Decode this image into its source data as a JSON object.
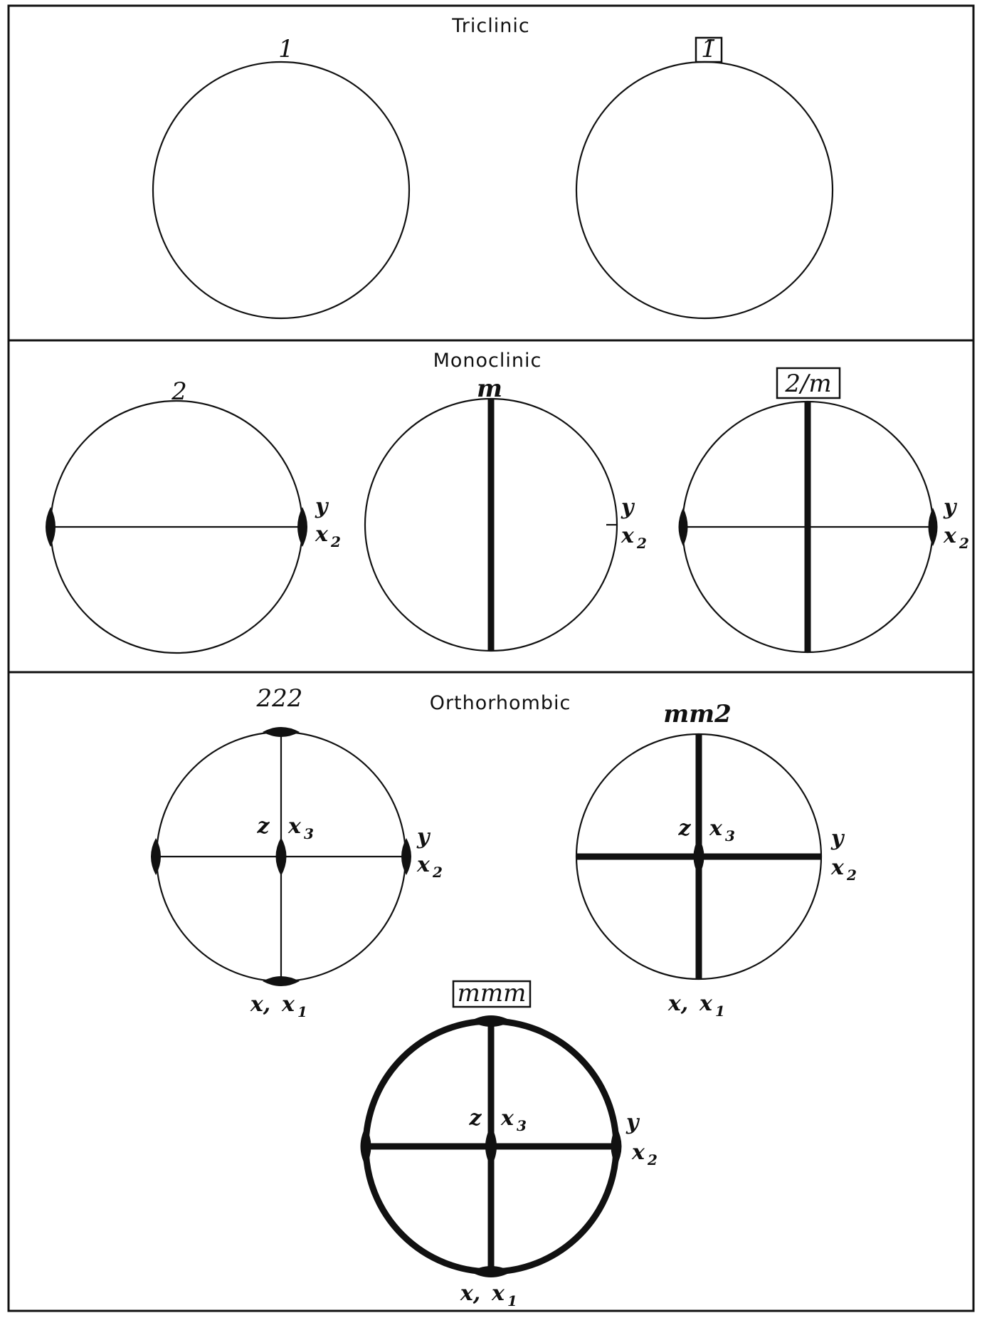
{
  "sections": [
    {
      "title": "Triclinic",
      "groups": [
        {
          "symbol": "1"
        },
        {
          "symbol": "1̄"
        }
      ]
    },
    {
      "title": "Monoclinic",
      "groups": [
        {
          "symbol": "2",
          "axis_labels": [
            "y",
            "x",
            "2"
          ]
        },
        {
          "symbol": "m",
          "axis_labels": [
            "y",
            "x",
            "2"
          ]
        },
        {
          "symbol": "2/m",
          "axis_labels": [
            "y",
            "x",
            "2"
          ]
        }
      ]
    },
    {
      "title": "Orthorhombic",
      "groups": [
        {
          "symbol": "222",
          "axis_labels": [
            "z",
            "x",
            "3",
            "y",
            "x",
            "2",
            "x,",
            "x",
            "1"
          ]
        },
        {
          "symbol": "mm2",
          "axis_labels": [
            "z",
            "x",
            "3",
            "y",
            "x",
            "2",
            "x,",
            "x",
            "1"
          ]
        },
        {
          "symbol": "mmm",
          "axis_labels": [
            "z",
            "x",
            "3",
            "y",
            "x",
            "2",
            "x,",
            "x",
            "1"
          ]
        }
      ]
    }
  ]
}
